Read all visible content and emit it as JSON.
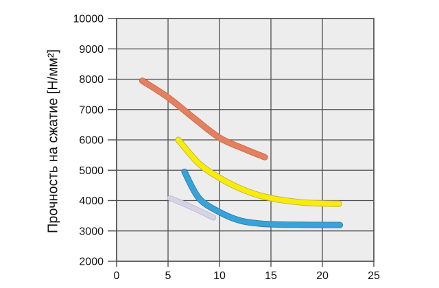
{
  "chart_data": {
    "type": "line",
    "title": "",
    "xlabel": "",
    "ylabel": "Прочность на сжатие [Н/мм²]",
    "xlim": [
      0,
      25
    ],
    "ylim": [
      2000,
      10000
    ],
    "x_ticks": [
      0,
      5,
      10,
      15,
      20,
      25
    ],
    "y_ticks": [
      2000,
      3000,
      4000,
      5000,
      6000,
      7000,
      8000,
      9000,
      10000
    ],
    "grid": true,
    "legend": false,
    "colors": {
      "plot_background": "#EEEDEE",
      "grid": "#4D4D4D",
      "text": "#111111",
      "page_background": "#FFFFFF"
    },
    "series": [
      {
        "name": "curve-salmon",
        "color": "#E47F5F",
        "edge_color": "#C96A4B",
        "line_width": 7.4,
        "points": [
          [
            2.5,
            7950
          ],
          [
            5,
            7400
          ],
          [
            7.5,
            6720
          ],
          [
            10,
            6070
          ],
          [
            12.5,
            5690
          ],
          [
            14.4,
            5430
          ]
        ]
      },
      {
        "name": "curve-yellow",
        "color": "#F8EC0A",
        "edge_color": "#BCB235",
        "line_width": 7.4,
        "points": [
          [
            6,
            6000
          ],
          [
            8,
            5220
          ],
          [
            10,
            4750
          ],
          [
            12,
            4400
          ],
          [
            14,
            4160
          ],
          [
            16,
            4020
          ],
          [
            18,
            3940
          ],
          [
            20,
            3905
          ],
          [
            21.6,
            3895
          ]
        ]
      },
      {
        "name": "curve-blue",
        "color": "#39A2D7",
        "edge_color": "#2B7FAC",
        "line_width": 7.4,
        "points": [
          [
            6.6,
            4950
          ],
          [
            8,
            4080
          ],
          [
            10,
            3620
          ],
          [
            12,
            3340
          ],
          [
            14,
            3240
          ],
          [
            16,
            3210
          ],
          [
            18,
            3200
          ],
          [
            20,
            3195
          ],
          [
            21.7,
            3195
          ]
        ]
      },
      {
        "name": "curve-lavender",
        "color": "#D6D3E4",
        "edge_color": "#BCB8D2",
        "line_width": 6.5,
        "points": [
          [
            5.2,
            4080
          ],
          [
            7.3,
            3780
          ],
          [
            9.4,
            3440
          ]
        ]
      }
    ]
  }
}
